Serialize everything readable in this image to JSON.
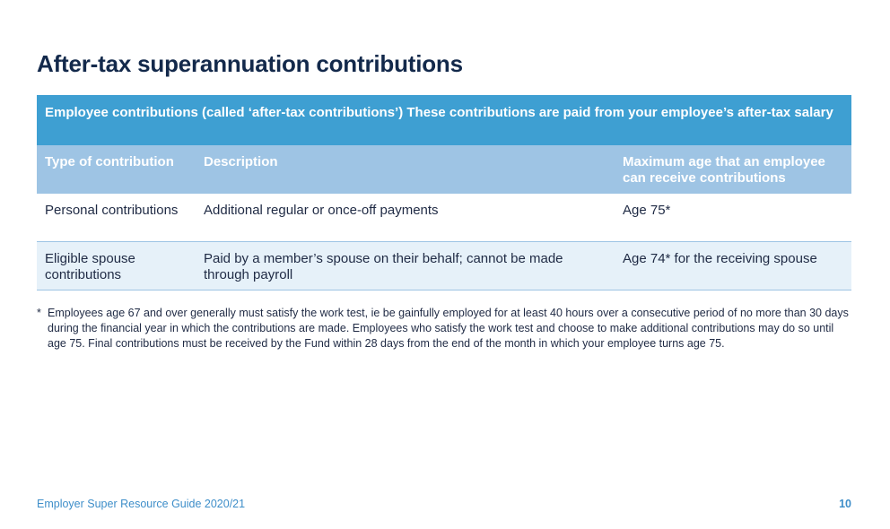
{
  "page": {
    "title": "After-tax superannuation contributions"
  },
  "table": {
    "banner": "Employee contributions (called ‘after-tax contributions’) These contributions are paid from your employee’s after-tax salary",
    "headers": [
      "Type of contribution",
      "Description",
      "Maximum age that an employee can receive contributions"
    ],
    "rows": [
      {
        "type": "Personal contributions",
        "description": "Additional regular or once-off payments",
        "max_age": "Age 75*"
      },
      {
        "type": "Eligible spouse contributions",
        "description": "Paid by a member’s spouse on their behalf; cannot be made through payroll",
        "max_age": "Age 74* for the receiving spouse"
      }
    ]
  },
  "footnote": {
    "marker": "*",
    "text": "Employees age 67 and over generally must satisfy the work test, ie be gainfully employed for at least 40 hours over a consecutive period of no more than 30 days during the financial year in which the contributions are made. Employees who satisfy the work test and choose to make additional contributions may do so until age 75. Final contributions must be received by the Fund within 28 days from the end of the month in which your employee turns age 75."
  },
  "footer": {
    "guide_title": "Employer Super Resource Guide 2020/21",
    "page_number": "10"
  },
  "colors": {
    "title": "#13294b",
    "banner": "#3e9fd2",
    "header": "#9ec4e4",
    "alt_row": "#e6f1f9",
    "footer_text": "#3e8ec9"
  }
}
